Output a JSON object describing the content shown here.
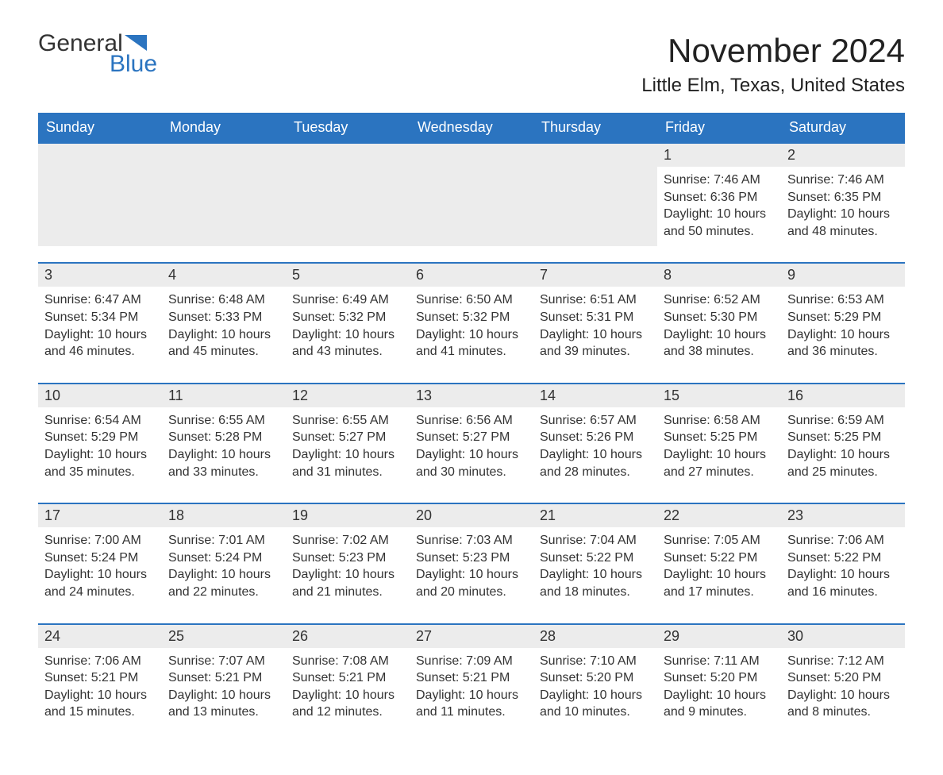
{
  "logo": {
    "text1": "General",
    "text2": "Blue",
    "icon_color": "#2b74c0"
  },
  "title": "November 2024",
  "location": "Little Elm, Texas, United States",
  "colors": {
    "header_bg": "#2b74c0",
    "header_text": "#ffffff",
    "row_border": "#2b74c0",
    "daynum_bg": "#ececec",
    "text": "#333333",
    "page_bg": "#ffffff"
  },
  "typography": {
    "title_fontsize": 42,
    "location_fontsize": 24,
    "header_fontsize": 18,
    "daynum_fontsize": 18,
    "body_fontsize": 16
  },
  "weekdays": [
    "Sunday",
    "Monday",
    "Tuesday",
    "Wednesday",
    "Thursday",
    "Friday",
    "Saturday"
  ],
  "weeks": [
    [
      null,
      null,
      null,
      null,
      null,
      {
        "n": "1",
        "sunrise": "Sunrise: 7:46 AM",
        "sunset": "Sunset: 6:36 PM",
        "daylight": "Daylight: 10 hours and 50 minutes."
      },
      {
        "n": "2",
        "sunrise": "Sunrise: 7:46 AM",
        "sunset": "Sunset: 6:35 PM",
        "daylight": "Daylight: 10 hours and 48 minutes."
      }
    ],
    [
      {
        "n": "3",
        "sunrise": "Sunrise: 6:47 AM",
        "sunset": "Sunset: 5:34 PM",
        "daylight": "Daylight: 10 hours and 46 minutes."
      },
      {
        "n": "4",
        "sunrise": "Sunrise: 6:48 AM",
        "sunset": "Sunset: 5:33 PM",
        "daylight": "Daylight: 10 hours and 45 minutes."
      },
      {
        "n": "5",
        "sunrise": "Sunrise: 6:49 AM",
        "sunset": "Sunset: 5:32 PM",
        "daylight": "Daylight: 10 hours and 43 minutes."
      },
      {
        "n": "6",
        "sunrise": "Sunrise: 6:50 AM",
        "sunset": "Sunset: 5:32 PM",
        "daylight": "Daylight: 10 hours and 41 minutes."
      },
      {
        "n": "7",
        "sunrise": "Sunrise: 6:51 AM",
        "sunset": "Sunset: 5:31 PM",
        "daylight": "Daylight: 10 hours and 39 minutes."
      },
      {
        "n": "8",
        "sunrise": "Sunrise: 6:52 AM",
        "sunset": "Sunset: 5:30 PM",
        "daylight": "Daylight: 10 hours and 38 minutes."
      },
      {
        "n": "9",
        "sunrise": "Sunrise: 6:53 AM",
        "sunset": "Sunset: 5:29 PM",
        "daylight": "Daylight: 10 hours and 36 minutes."
      }
    ],
    [
      {
        "n": "10",
        "sunrise": "Sunrise: 6:54 AM",
        "sunset": "Sunset: 5:29 PM",
        "daylight": "Daylight: 10 hours and 35 minutes."
      },
      {
        "n": "11",
        "sunrise": "Sunrise: 6:55 AM",
        "sunset": "Sunset: 5:28 PM",
        "daylight": "Daylight: 10 hours and 33 minutes."
      },
      {
        "n": "12",
        "sunrise": "Sunrise: 6:55 AM",
        "sunset": "Sunset: 5:27 PM",
        "daylight": "Daylight: 10 hours and 31 minutes."
      },
      {
        "n": "13",
        "sunrise": "Sunrise: 6:56 AM",
        "sunset": "Sunset: 5:27 PM",
        "daylight": "Daylight: 10 hours and 30 minutes."
      },
      {
        "n": "14",
        "sunrise": "Sunrise: 6:57 AM",
        "sunset": "Sunset: 5:26 PM",
        "daylight": "Daylight: 10 hours and 28 minutes."
      },
      {
        "n": "15",
        "sunrise": "Sunrise: 6:58 AM",
        "sunset": "Sunset: 5:25 PM",
        "daylight": "Daylight: 10 hours and 27 minutes."
      },
      {
        "n": "16",
        "sunrise": "Sunrise: 6:59 AM",
        "sunset": "Sunset: 5:25 PM",
        "daylight": "Daylight: 10 hours and 25 minutes."
      }
    ],
    [
      {
        "n": "17",
        "sunrise": "Sunrise: 7:00 AM",
        "sunset": "Sunset: 5:24 PM",
        "daylight": "Daylight: 10 hours and 24 minutes."
      },
      {
        "n": "18",
        "sunrise": "Sunrise: 7:01 AM",
        "sunset": "Sunset: 5:24 PM",
        "daylight": "Daylight: 10 hours and 22 minutes."
      },
      {
        "n": "19",
        "sunrise": "Sunrise: 7:02 AM",
        "sunset": "Sunset: 5:23 PM",
        "daylight": "Daylight: 10 hours and 21 minutes."
      },
      {
        "n": "20",
        "sunrise": "Sunrise: 7:03 AM",
        "sunset": "Sunset: 5:23 PM",
        "daylight": "Daylight: 10 hours and 20 minutes."
      },
      {
        "n": "21",
        "sunrise": "Sunrise: 7:04 AM",
        "sunset": "Sunset: 5:22 PM",
        "daylight": "Daylight: 10 hours and 18 minutes."
      },
      {
        "n": "22",
        "sunrise": "Sunrise: 7:05 AM",
        "sunset": "Sunset: 5:22 PM",
        "daylight": "Daylight: 10 hours and 17 minutes."
      },
      {
        "n": "23",
        "sunrise": "Sunrise: 7:06 AM",
        "sunset": "Sunset: 5:22 PM",
        "daylight": "Daylight: 10 hours and 16 minutes."
      }
    ],
    [
      {
        "n": "24",
        "sunrise": "Sunrise: 7:06 AM",
        "sunset": "Sunset: 5:21 PM",
        "daylight": "Daylight: 10 hours and 15 minutes."
      },
      {
        "n": "25",
        "sunrise": "Sunrise: 7:07 AM",
        "sunset": "Sunset: 5:21 PM",
        "daylight": "Daylight: 10 hours and 13 minutes."
      },
      {
        "n": "26",
        "sunrise": "Sunrise: 7:08 AM",
        "sunset": "Sunset: 5:21 PM",
        "daylight": "Daylight: 10 hours and 12 minutes."
      },
      {
        "n": "27",
        "sunrise": "Sunrise: 7:09 AM",
        "sunset": "Sunset: 5:21 PM",
        "daylight": "Daylight: 10 hours and 11 minutes."
      },
      {
        "n": "28",
        "sunrise": "Sunrise: 7:10 AM",
        "sunset": "Sunset: 5:20 PM",
        "daylight": "Daylight: 10 hours and 10 minutes."
      },
      {
        "n": "29",
        "sunrise": "Sunrise: 7:11 AM",
        "sunset": "Sunset: 5:20 PM",
        "daylight": "Daylight: 10 hours and 9 minutes."
      },
      {
        "n": "30",
        "sunrise": "Sunrise: 7:12 AM",
        "sunset": "Sunset: 5:20 PM",
        "daylight": "Daylight: 10 hours and 8 minutes."
      }
    ]
  ]
}
